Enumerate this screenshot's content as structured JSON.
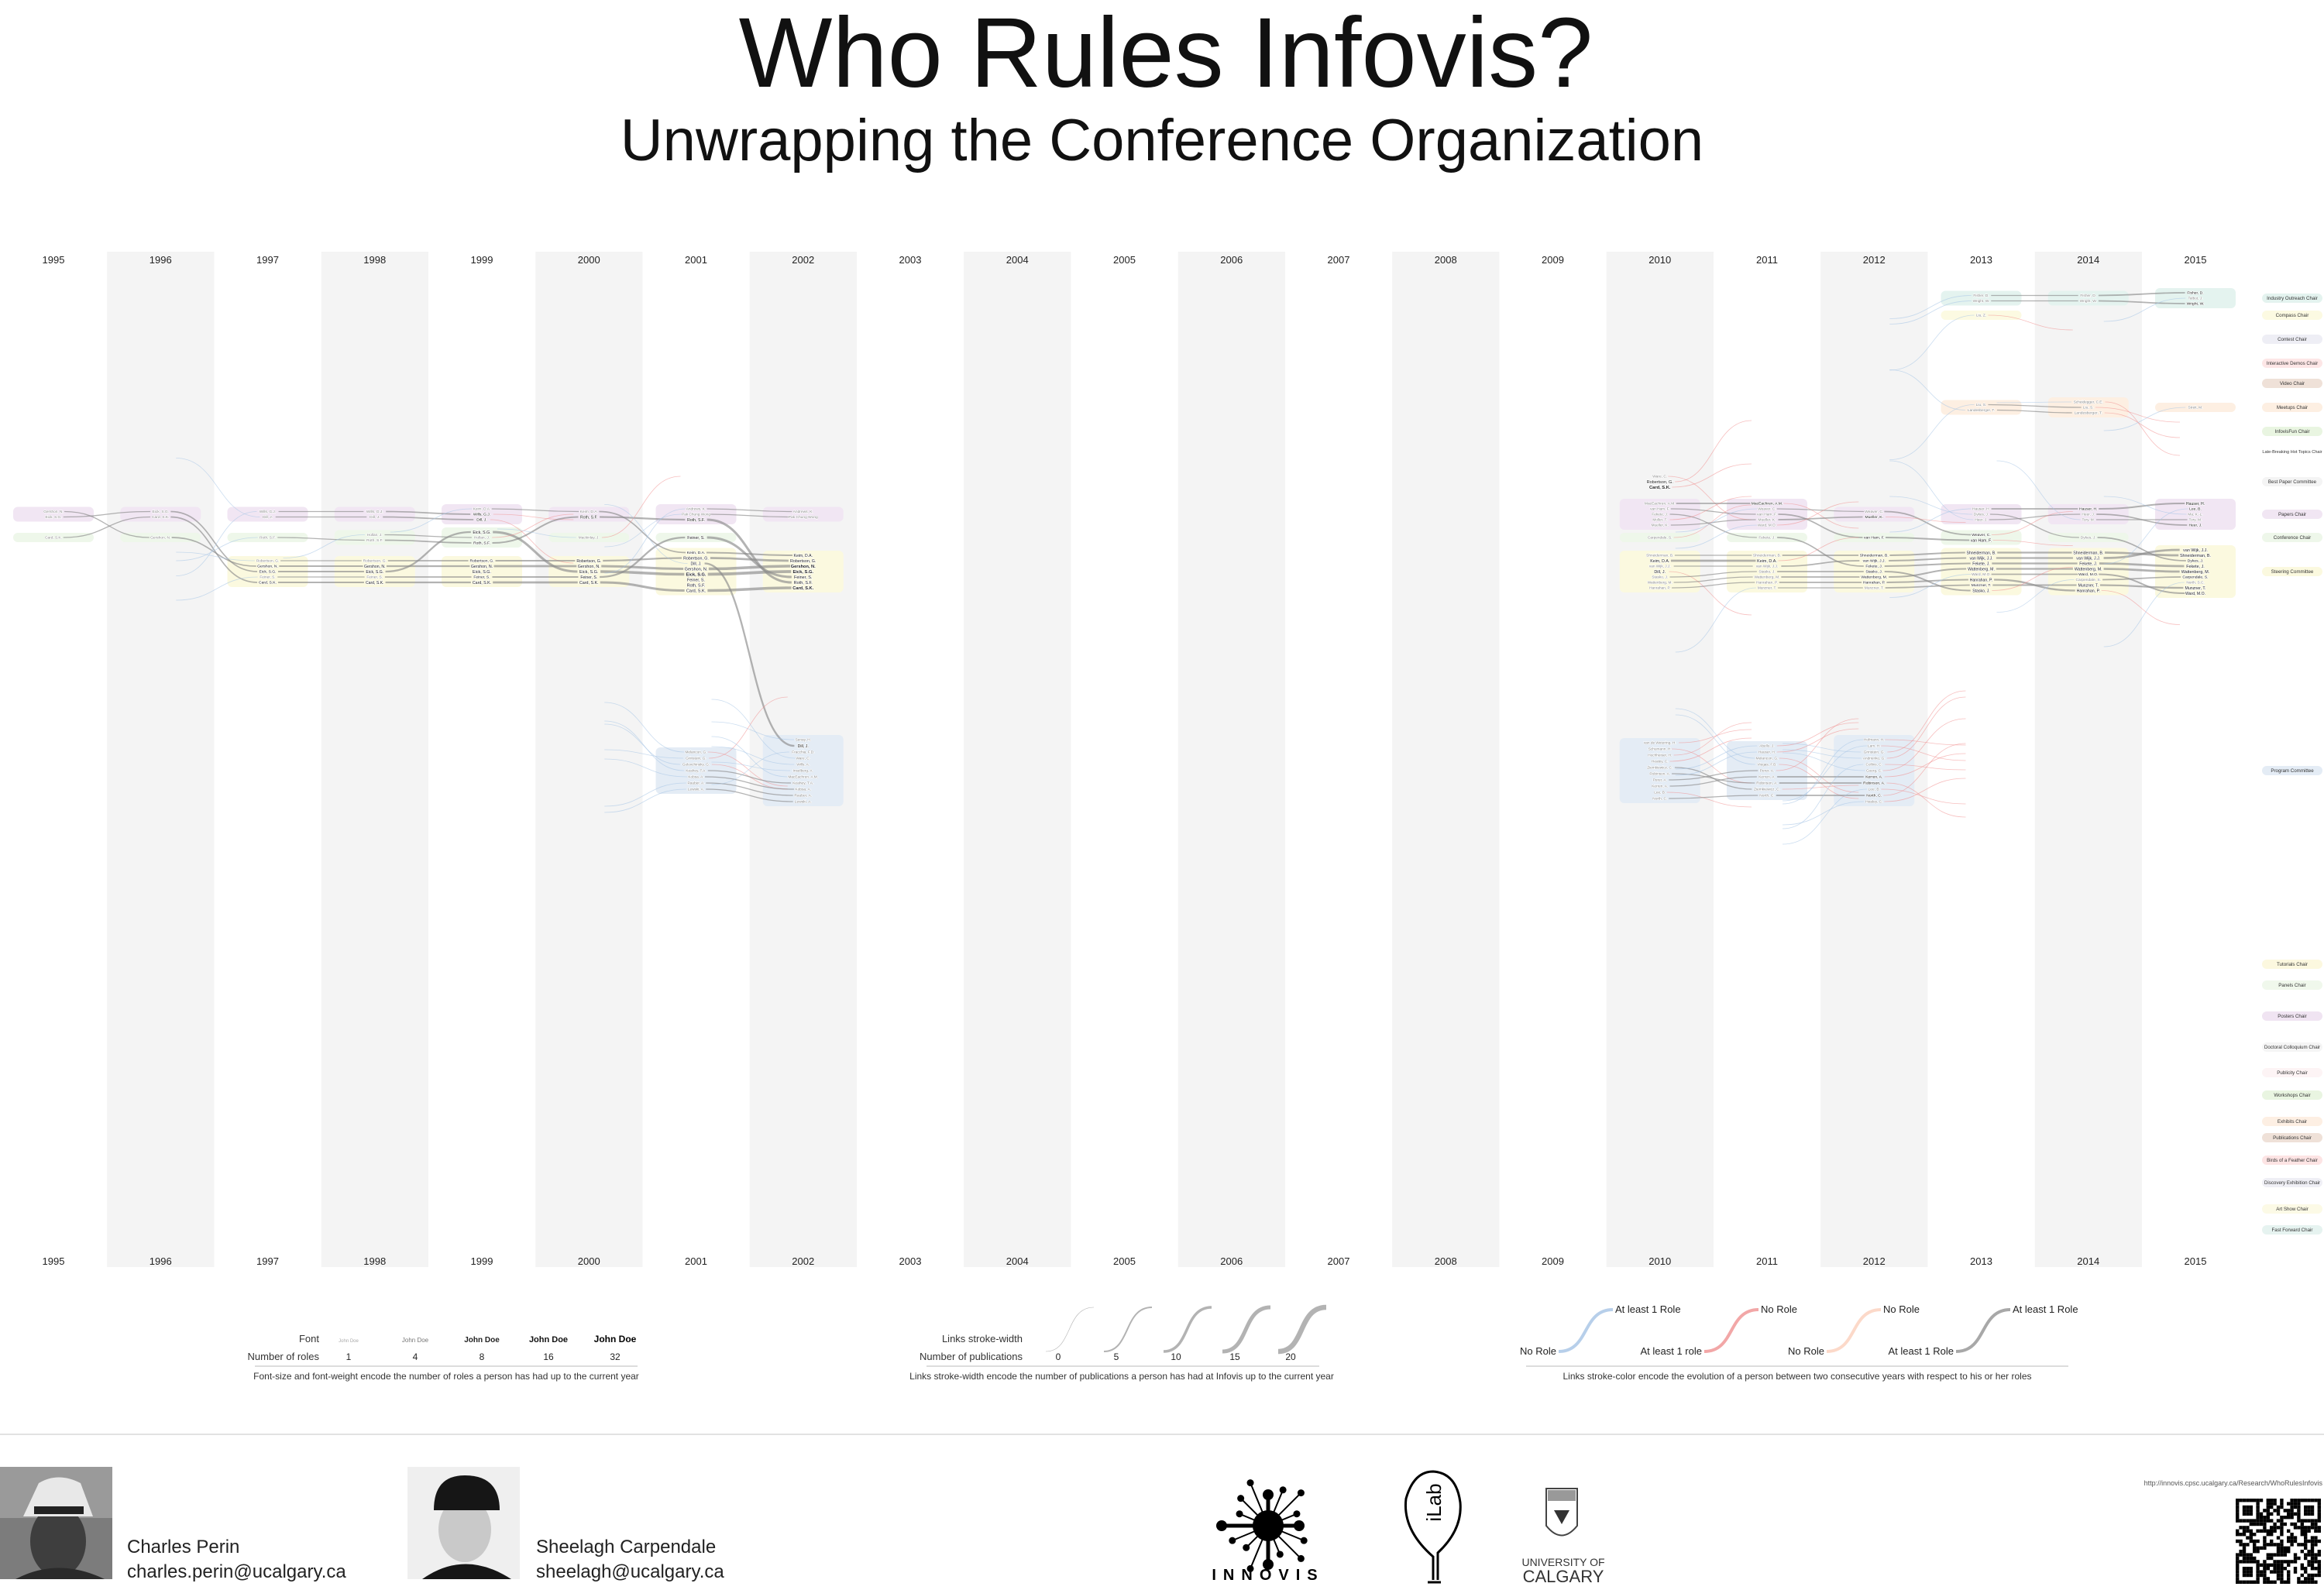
{
  "header": {
    "title": "Who Rules Infovis?",
    "subtitle": "Unwrapping the Conference Organization"
  },
  "chart_data": {
    "type": "storyline",
    "years": [
      "1995",
      "1996",
      "1997",
      "1998",
      "1999",
      "2000",
      "2001",
      "2002",
      "2003",
      "2004",
      "2005",
      "2006",
      "2007",
      "2008",
      "2009",
      "2010",
      "2011",
      "2012",
      "2013",
      "2014",
      "2015"
    ],
    "roles": [
      {
        "name": "Industry Outreach Chair",
        "color": "#e4f3ef"
      },
      {
        "name": "Compass Chair",
        "color": "#fcfae2"
      },
      {
        "name": "Contest Chair",
        "color": "#eeeef5"
      },
      {
        "name": "Interactive Demos Chair",
        "color": "#fde6e6"
      },
      {
        "name": "Video Chair",
        "color": "#efe1d8"
      },
      {
        "name": "Meetups Chair",
        "color": "#fdefe2"
      },
      {
        "name": "InfovisFun Chair",
        "color": "#e9f5e1"
      },
      {
        "name": "Late-Breaking Hot Topics Chair",
        "color": "#ffffff"
      },
      {
        "name": "Best Paper Committee",
        "color": "#f4f4f4"
      },
      {
        "name": "Papers Chair",
        "color": "#f1e6f3"
      },
      {
        "name": "Conference Chair",
        "color": "#eef7ea"
      },
      {
        "name": "Steering Committee",
        "color": "#fbf9df"
      },
      {
        "name": "Program Committee",
        "color": "#e4ecf5"
      },
      {
        "name": "Tutorials Chair",
        "color": "#fcf8df"
      },
      {
        "name": "Panels Chair",
        "color": "#f0f8ec"
      },
      {
        "name": "Posters Chair",
        "color": "#f0e4f2"
      },
      {
        "name": "Doctoral Colloquium Chair",
        "color": "#f5f5f5"
      },
      {
        "name": "Publicity Chair",
        "color": "#fdf4f5"
      },
      {
        "name": "Workshops Chair",
        "color": "#e9f5e1"
      },
      {
        "name": "Exhibits Chair",
        "color": "#fdefe3"
      },
      {
        "name": "Publications Chair",
        "color": "#efe1d8"
      },
      {
        "name": "Birds of a Feather Chair",
        "color": "#fde4e4"
      },
      {
        "name": "Discovery Exhibition Chair",
        "color": "#efeff5"
      },
      {
        "name": "Art Show Chair",
        "color": "#fcfae6"
      },
      {
        "name": "Fast Forward Chair",
        "color": "#e6f3f0"
      }
    ],
    "participation": {
      "1995": {
        "Papers Chair": [
          "Gershon, N.",
          "Eick, S.G."
        ],
        "Conference Chair": [
          "Card, S.K."
        ]
      },
      "1996": {
        "Papers Chair": [
          "Eick, S.G.",
          "Card, S.K."
        ],
        "Conference Chair": [
          "Gershon, N."
        ]
      },
      "1997": {
        "Papers Chair": [
          "Wills, G.J.",
          "Dill, J."
        ],
        "Conference Chair": [
          "Roth, S.F."
        ],
        "Steering Committee": [
          "Robertson, G.",
          "Gershon, N.",
          "Eick, S.G.",
          "Feiner, S.",
          "Card, S.K."
        ]
      },
      "1998": {
        "Papers Chair": [
          "Wills, G.J.",
          "Dill, J."
        ],
        "Conference Chair": [
          "Hollan, J.",
          "Roth, S.F."
        ],
        "Steering Committee": [
          "Robertson, G.",
          "Gershon, N.",
          "Eick, S.G.",
          "Feiner, S.",
          "Card, S.K."
        ]
      },
      "1999": {
        "Papers Chair": [
          "Keim, D.A.",
          "Wills, G.J.",
          "Dill, J."
        ],
        "Conference Chair": [
          "Eick, S.G.",
          "Hollan, J.",
          "Roth, S.F."
        ],
        "Steering Committee": [
          "Robertson, G.",
          "Gershon, N.",
          "Eick, S.G.",
          "Feiner, S.",
          "Card, S.K."
        ]
      },
      "2000": {
        "Papers Chair": [
          "Keim, D.A.",
          "Roth, S.F."
        ],
        "Conference Chair": [
          "Mackinlay, J."
        ],
        "Steering Committee": [
          "Robertson, G.",
          "Gershon, N.",
          "Eick, S.G.",
          "Feiner, S.",
          "Card, S.K."
        ]
      },
      "2001": {
        "Papers Chair": [
          "Andrews, K.",
          "Pak Chung Wong",
          "Roth, S.F."
        ],
        "Conference Chair": [
          "Feiner, S."
        ],
        "Steering Committee": [
          "Keim, D.A.",
          "Robertson, G.",
          "Dill, J.",
          "Gershon, N.",
          "Eick, S.G.",
          "Feiner, S.",
          "Roth, S.F.",
          "Card, S.K."
        ],
        "Program Committee": [
          "Melancon, G.",
          "Grinstein, G.",
          "Golovchinsky, G.",
          "Keahey, T.A.",
          "Kobsa, A.",
          "Rauber, A.",
          "Lewski, A."
        ]
      },
      "2002": {
        "Papers Chair": [
          "Andrews, K.",
          "Pak Chung Wong"
        ],
        "Steering Committee": [
          "Keim, D.A.",
          "Robertson, G.",
          "Gershon, N.",
          "Eick, S.G.",
          "Feiner, S.",
          "Roth, S.F.",
          "Card, S.K."
        ],
        "Program Committee": [
          "Senay, H.",
          "Dill, J.",
          "Fracchia, F.D.",
          "Ware, C.",
          "Wills, A.",
          "Inselberg, A.",
          "MacEachren, A.M.",
          "Keahey, T.A.",
          "Kobsa, A.",
          "Rauber, A.",
          "Lewski, A."
        ]
      },
      "2010": {
        "Best Paper Committee": [
          "Ware, C.",
          "Robertson, G.",
          "Card, S.K."
        ],
        "Papers Chair": [
          "MacEachren, A.M.",
          "van Ham, F.",
          "Fekete, J.",
          "Moller, T.",
          "Mueller, K."
        ],
        "Conference Chair": [
          "Carpendale, S."
        ],
        "Steering Committee": [
          "Shneiderman, B.",
          "Keim, D.A.",
          "van Wijk, J.J.",
          "Dill, J.",
          "Stasko, J.",
          "Wattenberg, M.",
          "Hanrahan, P."
        ],
        "Program Committee": [
          "van de Wetering, H.",
          "Schumann, H.",
          "Hochheiser, H.",
          "Healey, C.",
          "Ziemkiewicz, C.",
          "Robinson, A.",
          "Perer, A.",
          "Kerren, A.",
          "Lee, B.",
          "North, C."
        ]
      },
      "2011": {
        "Papers Chair": [
          "MacEachren, A.M.",
          "Weaver, C.",
          "van Ham, F.",
          "Mueller, K.",
          "Ward, M.O."
        ],
        "Conference Chair": [
          "Fekete, J."
        ],
        "Steering Committee": [
          "Shneiderman, B.",
          "Keim, D.A.",
          "van Wijk, J.J.",
          "Stasko, J.",
          "Wattenberg, M.",
          "Hanrahan, P.",
          "Munzner, T."
        ],
        "Program Committee": [
          "Abello, J.",
          "Hauser, H.",
          "Melancon, G.",
          "Viegas, F.B.",
          "Perer, A.",
          "Kerren, A.",
          "Robinson, A.",
          "Ziemkiewicz, C.",
          "North, C."
        ]
      },
      "2012": {
        "Papers Chair": [
          "Weaver, C.",
          "Mueller, K."
        ],
        "Conference Chair": [
          "van Ham, F."
        ],
        "Steering Committee": [
          "Shneiderman, B.",
          "van Wijk, J.J.",
          "Fekete, J.",
          "Stasko, J.",
          "Wattenberg, M.",
          "Hanrahan, P.",
          "Munzner, T."
        ],
        "Program Committee": [
          "Hofmann, H.",
          "Lam, H.",
          "Grinstein, G.",
          "Andrienko, G.",
          "Collins, C.",
          "Goerg, C.",
          "Kerren, A.",
          "Robinson, A.",
          "Lee, B.",
          "North, C.",
          "Healey, C."
        ]
      },
      "2013": {
        "Industry Outreach Chair": [
          "Fisher, D.",
          "Wright, W."
        ],
        "Compass Chair": [
          "Liu, Z."
        ],
        "Meetups Chair": [
          "Liu, S.",
          "Landesberger, T."
        ],
        "Papers Chair": [
          "Hauser, H.",
          "Dykes, J.",
          "Heer, J."
        ],
        "Conference Chair": [
          "Weaver, C.",
          "van Ham, F."
        ],
        "Steering Committee": [
          "Shneiderman, B.",
          "van Wijk, J.J.",
          "Fekete, J.",
          "Wattenberg, M.",
          "Ward, M.O.",
          "Hanrahan, P.",
          "Munzner, T.",
          "Stasko, J."
        ]
      },
      "2014": {
        "Industry Outreach Chair": [
          "Fisher, D.",
          "Wright, W."
        ],
        "Meetups Chair": [
          "Scheidegger, C.E.",
          "Liu, S.",
          "Landesberger, T."
        ],
        "Papers Chair": [
          "Hauser, H.",
          "Heer, J.",
          "Tory, M."
        ],
        "Conference Chair": [
          "Dykes, J."
        ],
        "Steering Committee": [
          "Shneiderman, B.",
          "van Wijk, J.J.",
          "Fekete, J.",
          "Wattenberg, M.",
          "Ward, M.O.",
          "Carpendale, S.",
          "Munzner, T.",
          "Hanrahan, P."
        ]
      },
      "2015": {
        "Industry Outreach Chair": [
          "Fisher, D.",
          "Talbot, J.",
          "Wright, W."
        ],
        "Meetups Chair": [
          "Streit, M."
        ],
        "Papers Chair": [
          "Hauser, H.",
          "Lee, B.",
          "Ma, K.-L.",
          "Tory, M.",
          "Heer, J."
        ],
        "Steering Committee": [
          "van Wijk, J.J.",
          "Shneiderman, B.",
          "Dykes, J.",
          "Fekete, J.",
          "Wattenberg, M.",
          "Carpendale, S.",
          "North, S.C.",
          "Munzner, T.",
          "Ward, M.O."
        ]
      }
    },
    "link_colors": {
      "no_role_to_role": "#a9c6e6",
      "role_to_no_role": "#f08a8a",
      "no_role_to_no_role": "#fcd3c1",
      "role_to_role": "#8a8a8a"
    }
  },
  "legend": {
    "font": {
      "font_label": "Font",
      "roles_label": "Number of roles",
      "sample": "John Doe",
      "values": [
        "1",
        "4",
        "8",
        "16",
        "32"
      ],
      "caption": "Font-size and font-weight encode the number of roles a person has had up to the current year"
    },
    "stroke": {
      "width_label": "Links stroke-width",
      "pubs_label": "Number of publications",
      "values": [
        "0",
        "5",
        "10",
        "15",
        "20"
      ],
      "caption": "Links stroke-width encode the number of publications a person has had at Infovis up to the current year"
    },
    "color": {
      "items": [
        {
          "from": "No Role",
          "to": "At least 1 Role",
          "color": "#b7cfea"
        },
        {
          "from": "At least 1 role",
          "to": "No Role",
          "color": "#f2a7a7"
        },
        {
          "from": "No Role",
          "to": "No Role",
          "color": "#fcd9c9"
        },
        {
          "from": "At least 1 Role",
          "to": "At least 1 Role",
          "color": "#a8a8a8"
        }
      ],
      "caption": "Links stroke-color encode the evolution of a person between two consecutive years with respect to his or her roles"
    }
  },
  "footer": {
    "authors": [
      {
        "name": "Charles Perin",
        "email": "charles.perin@ucalgary.ca"
      },
      {
        "name": "Sheelagh Carpendale",
        "email": "sheelagh@ucalgary.ca"
      }
    ],
    "logos": {
      "innovis": "INNOVIS",
      "ilab": "iLab",
      "ucalgary_line1": "UNIVERSITY OF",
      "ucalgary_line2": "CALGARY"
    },
    "url": "http://innovis.cpsc.ucalgary.ca/Research/WhoRulesInfovis"
  }
}
